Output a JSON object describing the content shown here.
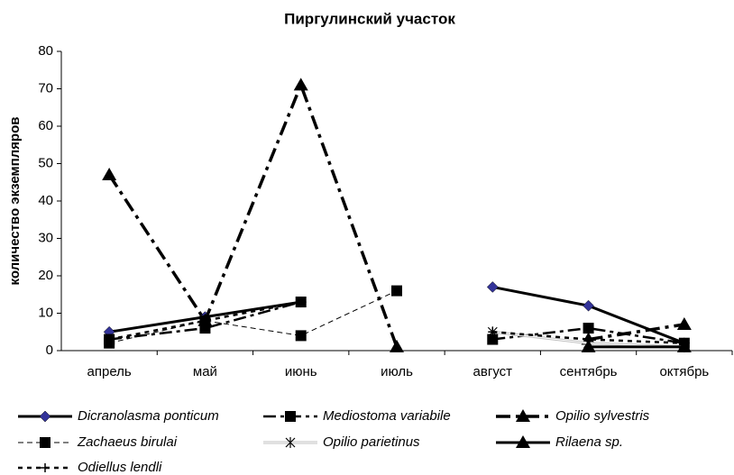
{
  "chart_data": {
    "type": "line",
    "title": "Пиргулинский участок",
    "y_label": "количество экземпляров",
    "categories": [
      "апрель",
      "май",
      "июнь",
      "июль",
      "август",
      "сентябрь",
      "октябрь"
    ],
    "ylim": [
      0,
      80
    ],
    "yticks": [
      0,
      10,
      20,
      30,
      40,
      50,
      60,
      70,
      80
    ],
    "grid": false,
    "legend": "bottom",
    "series": [
      {
        "name": "Dicranolasma ponticum",
        "color": "#000000",
        "marker_color": "#333399",
        "marker": "diamond",
        "line_style": "solid",
        "values": [
          5,
          9,
          13,
          null,
          17,
          12,
          2
        ]
      },
      {
        "name": "Mediostoma variabile",
        "color": "#000000",
        "marker_color": "#000000",
        "marker": "square",
        "line_style": "dash-dot",
        "values": [
          3,
          6,
          13,
          null,
          3,
          6,
          2
        ]
      },
      {
        "name": "Opilio sylvestris",
        "color": "#000000",
        "marker_color": "#000000",
        "marker": "triangle",
        "line_style": "long-dash-dot",
        "values": [
          47,
          8,
          71,
          1,
          null,
          3,
          7
        ]
      },
      {
        "name": "Zachaeus birulai",
        "color": "#000000",
        "marker_color": "#000000",
        "marker": "square",
        "line_style": "dash",
        "values": [
          2,
          8,
          4,
          16,
          null,
          null,
          null
        ]
      },
      {
        "name": "Opilio parietinus",
        "color": "#c0c0c0",
        "marker_color": "#000000",
        "marker": "star",
        "line_style": "double",
        "values": [
          null,
          null,
          null,
          null,
          5,
          2,
          1
        ]
      },
      {
        "name": "Rilaena sp.",
        "color": "#000000",
        "marker_color": "#000000",
        "marker": "triangle",
        "line_style": "solid",
        "values": [
          null,
          null,
          null,
          null,
          null,
          1,
          1
        ]
      },
      {
        "name": "Odiellus lendli",
        "color": "#000000",
        "marker_color": "#000000",
        "marker": "plus",
        "line_style": "short-dash",
        "values": [
          3,
          8,
          13,
          null,
          5,
          3,
          2
        ]
      }
    ]
  }
}
